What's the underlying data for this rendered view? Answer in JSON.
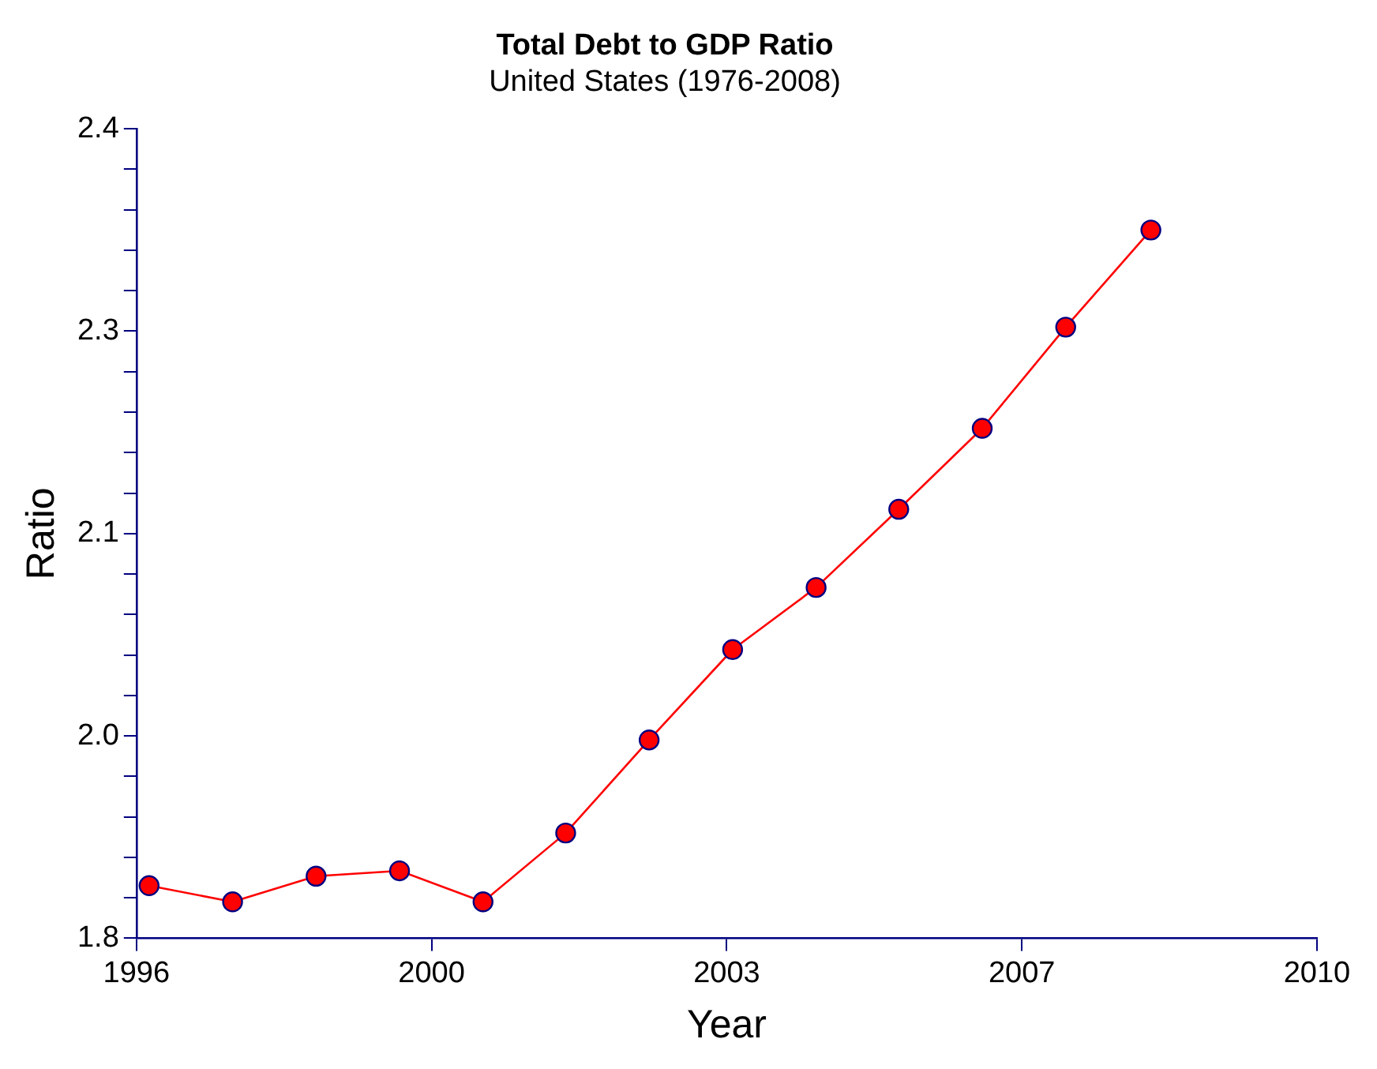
{
  "chart_data": {
    "type": "line",
    "title": "Total Debt to GDP Ratio",
    "subtitle": "United States (1976-2008)",
    "xlabel": "Year",
    "ylabel": "Ratio",
    "x": [
      1996.15,
      1997.14,
      1998.13,
      1999.12,
      2000.11,
      2001.09,
      2002.08,
      2003.07,
      2004.06,
      2005.04,
      2006.03,
      2007.02,
      2008.03
    ],
    "series": [
      {
        "color": "#ff0000",
        "values": [
          1.839,
          1.827,
          1.846,
          1.85,
          1.827,
          1.878,
          1.947,
          2.014,
          2.06,
          2.118,
          2.178,
          2.253,
          2.325
        ]
      }
    ],
    "xlim": [
      1996,
      2010
    ],
    "xticks": [
      1996,
      {
        "value": 1999.5,
        "label": "2000"
      },
      2003,
      {
        "value": 2006.5,
        "label": "2007"
      },
      2010
    ],
    "ylim": [
      1.8,
      2.4
    ],
    "yticks": [
      1.8,
      {
        "value": 1.83,
        "label": null
      },
      {
        "value": 1.86,
        "label": null
      },
      {
        "value": 1.89,
        "label": null
      },
      {
        "value": 1.92,
        "label": null
      },
      {
        "value": 1.95,
        "label": "2.0"
      },
      {
        "value": 1.98,
        "label": null
      },
      {
        "value": 2.01,
        "label": null
      },
      {
        "value": 2.04,
        "label": null
      },
      {
        "value": 2.07,
        "label": null
      },
      2.1,
      {
        "value": 2.13,
        "label": null
      },
      {
        "value": 2.16,
        "label": null
      },
      {
        "value": 2.19,
        "label": null
      },
      {
        "value": 2.22,
        "label": null
      },
      {
        "value": 2.25,
        "label": "2.3"
      },
      {
        "value": 2.28,
        "label": null
      },
      {
        "value": 2.31,
        "label": null
      },
      {
        "value": 2.34,
        "label": null
      },
      {
        "value": 2.37,
        "label": null
      },
      2.4
    ],
    "grid": false,
    "legend": false,
    "marker": "circle",
    "line_style": "solid"
  }
}
